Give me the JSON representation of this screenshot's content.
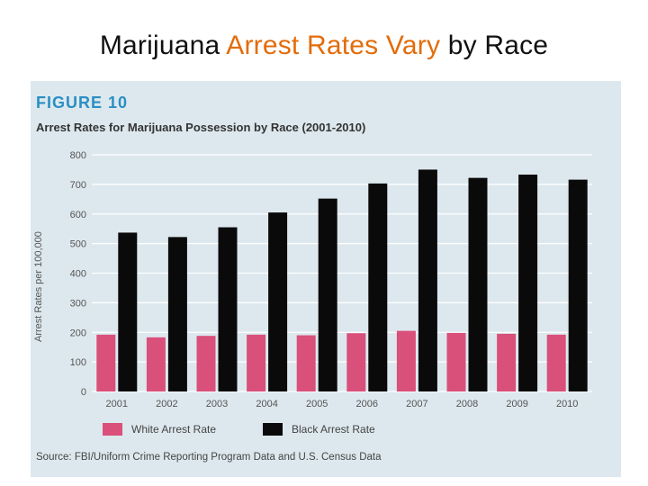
{
  "slide": {
    "title_part1": "Marijuana ",
    "title_accent": "Arrest Rates Vary",
    "title_part2": " by Race"
  },
  "figure": {
    "label": "FIGURE 10",
    "source": "Source: FBI/Uniform Crime Reporting Program Data and U.S. Census Data"
  },
  "colors": {
    "white_series": "#d9507a",
    "black_series": "#0a0a0a",
    "figure_label": "#2a8fc4",
    "title_accent": "#e36c0a",
    "panel_bg": "#dde8ee"
  },
  "chart_data": {
    "type": "bar",
    "title": "Arrest Rates for Marijuana Possession by Race (2001-2010)",
    "ylabel": "Arrest Rates per 100,000",
    "xlabel": "",
    "categories": [
      "2001",
      "2002",
      "2003",
      "2004",
      "2005",
      "2006",
      "2007",
      "2008",
      "2009",
      "2010"
    ],
    "ylim": [
      0,
      800
    ],
    "yticks": [
      0,
      100,
      200,
      300,
      400,
      500,
      600,
      700,
      800
    ],
    "series": [
      {
        "name": "White Arrest Rate",
        "color": "#d9507a",
        "values": [
          192,
          183,
          188,
          192,
          190,
          197,
          205,
          198,
          195,
          192
        ]
      },
      {
        "name": "Black Arrest Rate",
        "color": "#0a0a0a",
        "values": [
          537,
          522,
          555,
          605,
          652,
          703,
          750,
          722,
          733,
          716
        ]
      }
    ],
    "grid": true,
    "legend_position": "bottom"
  }
}
